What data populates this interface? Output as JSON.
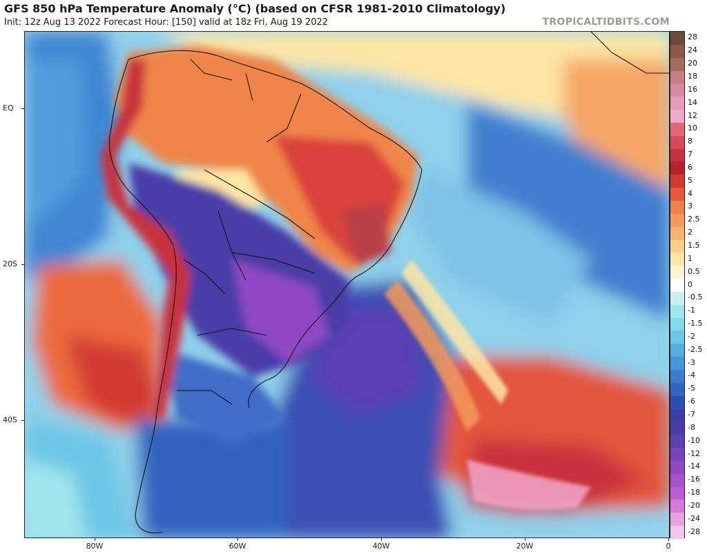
{
  "header": {
    "title": "GFS 850 hPa Temperature Anomaly (°C) (based on CFSR 1981-2010 Climatology)",
    "subtitle": "Init: 12z Aug 13 2022   Forecast Hour: [150]   valid at 18z Fri, Aug 19 2022",
    "brand": "TROPICALTIDBITS.COM"
  },
  "map": {
    "lat_labels": [
      "EQ",
      "20S",
      "40S"
    ],
    "lon_labels": [
      "80W",
      "60W",
      "40W",
      "20W",
      "0"
    ]
  },
  "colorbar": {
    "labels": [
      "28",
      "24",
      "20",
      "18",
      "16",
      "14",
      "12",
      "10",
      "8",
      "7",
      "6",
      "5",
      "4",
      "3",
      "2.5",
      "2",
      "1.5",
      "1",
      "0.5",
      "0",
      "-0.5",
      "-1",
      "-1.5",
      "-2",
      "-2.5",
      "-3",
      "-4",
      "-5",
      "-6",
      "-7",
      "-8",
      "-10",
      "-12",
      "-14",
      "-16",
      "-18",
      "-20",
      "-24",
      "-28"
    ],
    "colors": [
      "#6e4a3a",
      "#8c5a45",
      "#a86c5a",
      "#c77f7f",
      "#d98aa0",
      "#e79bbd",
      "#f1a7c9",
      "#e5657a",
      "#d84a5a",
      "#c8303e",
      "#b81f2c",
      "#d43a34",
      "#e65a3a",
      "#f07f48",
      "#f59a5a",
      "#f8b46d",
      "#fbcf86",
      "#fde6a6",
      "#fff3cf",
      "#ffffff",
      "#c9f1f3",
      "#9fe6ec",
      "#84d9e8",
      "#6cc6e6",
      "#57afe1",
      "#4796d8",
      "#3c7ccd",
      "#3364bf",
      "#2d4fb0",
      "#3a3ea6",
      "#4a3da8",
      "#5c3fb0",
      "#7444b9",
      "#8f4ac2",
      "#a851cb",
      "#c05cd2",
      "#d47ad8",
      "#e6a3e0",
      "#f2c6ea"
    ]
  },
  "legend_title": ""
}
